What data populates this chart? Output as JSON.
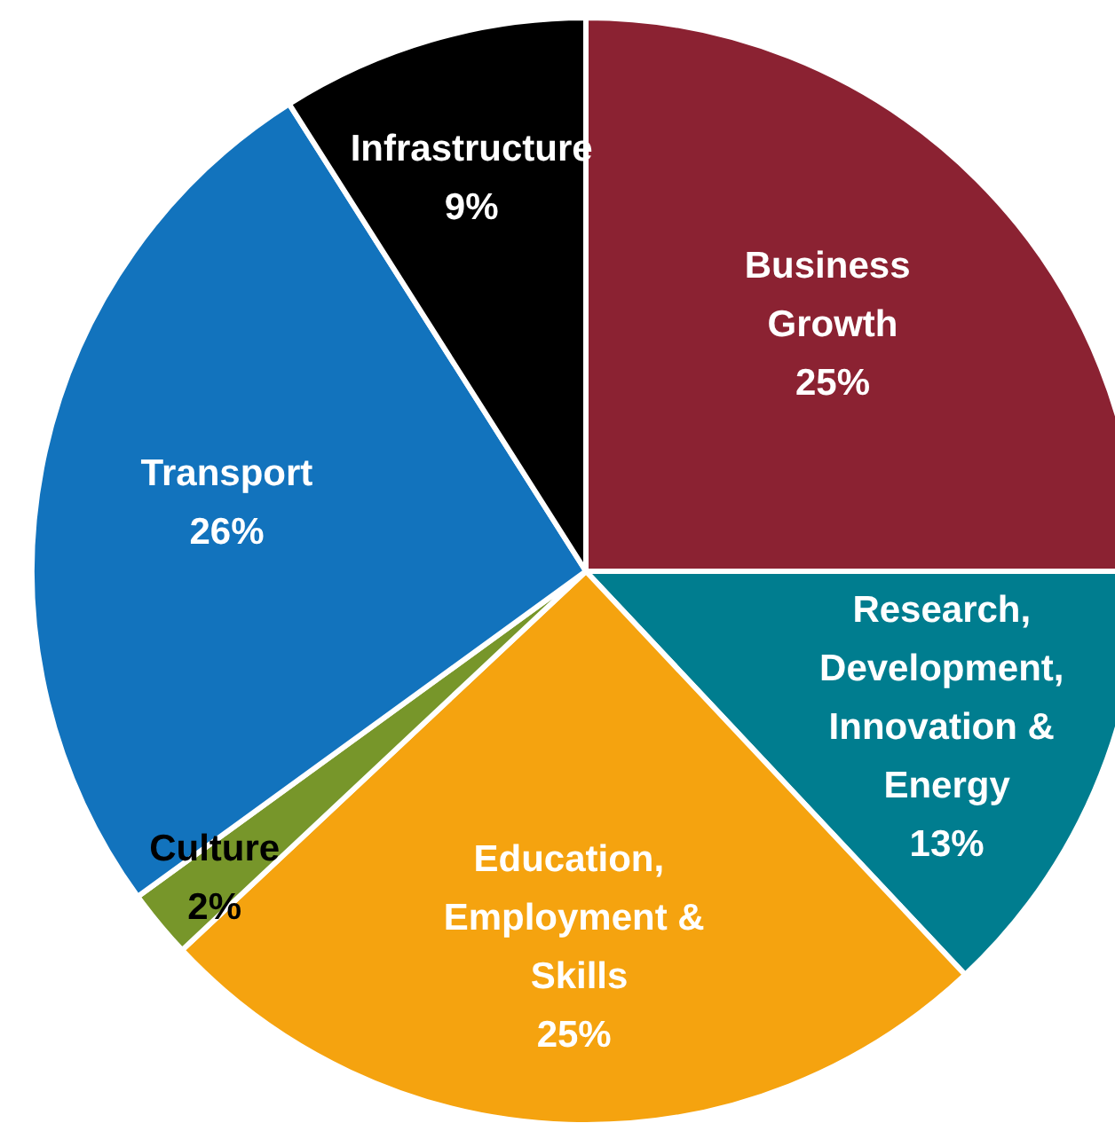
{
  "chart_data": {
    "type": "pie",
    "categories": [
      "Business Growth",
      "Research, Development, Innovation & Energy",
      "Education, Employment & Skills",
      "Culture",
      "Transport",
      "Infrastructure"
    ],
    "values": [
      25,
      13,
      25,
      2,
      26,
      9
    ],
    "value_labels": [
      "25%",
      "13%",
      "25%",
      "2%",
      "26%",
      "9%"
    ],
    "colors": [
      "#8b2232",
      "#007d8f",
      "#f5a30f",
      "#77962a",
      "#1273bd",
      "#000000"
    ]
  }
}
